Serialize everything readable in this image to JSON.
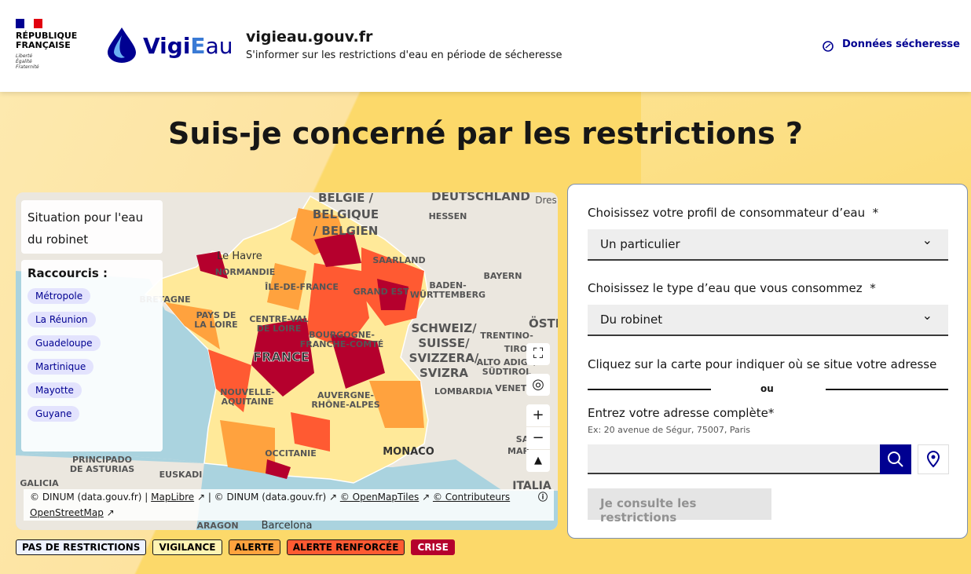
{
  "header": {
    "republic": [
      "RÉPUBLIQUE",
      "FRANÇAISE"
    ],
    "motto": [
      "Liberté",
      "Égalité",
      "Fraternité"
    ],
    "brand": [
      "Vigi",
      "E",
      "au"
    ],
    "site_title": "vigieau.gouv.fr",
    "tagline": "S'informer sur les restrictions d'eau en période de sécheresse",
    "nav_link": "Données sécheresse"
  },
  "hero": {
    "title": "Suis-je concerné par les restrictions ?"
  },
  "map": {
    "panel_title": "Situation pour l'eau du robinet",
    "shortcuts_title": "Raccourcis :",
    "shortcuts": [
      "Métropole",
      "La Réunion",
      "Guadeloupe",
      "Martinique",
      "Mayotte",
      "Guyane"
    ],
    "labels": [
      "BELGIË /",
      "BELGIQUE",
      "/ BELGIEN",
      "DEUTSCHLAND",
      "Dres",
      "HESSEN",
      "Le Havre",
      "NORMANDIE",
      "SAARLAND",
      "BADEN-",
      "WÜRTTEMBERG",
      "BAYERN",
      "ÎLE-DE-FRANCE",
      "GRAND EST",
      "BRETAGNE",
      "PAYS DE",
      "LA LOIRE",
      "CENTRE-VAL",
      "DE LOIRE",
      "BOURGOGNE-",
      "FRANCHE-COMTÉ",
      "SCHWEIZ/",
      "SUISSE/",
      "SVIZZERA/",
      "SVIZRA",
      "ÖSTE",
      "TRENTINO-",
      "ALTO ADIGE/",
      "SÜDTIROL",
      "TIROL",
      "VENETO",
      "LOMBARDIA",
      "FRANCE",
      "NOUVELLE-",
      "AQUITAINE",
      "AUVERGNE-",
      "RHÔNE-ALPES",
      "MONACO",
      "OCCITANIE",
      "PRINCIPADO",
      "DE ASTURIAS",
      "EUSKADI",
      "GALICIA",
      "ARAGON",
      "Barcelona",
      "ITALIA",
      "SA",
      "MAR"
    ],
    "attribution": [
      "© DINUM (data.gouv.fr) |",
      "MapLibre",
      "| © DINUM (data.gouv.fr)",
      "© OpenMapTiles",
      "© Contributeurs",
      "OpenStreetMap"
    ],
    "legend": [
      "PAS DE RESTRICTIONS",
      "VIGILANCE",
      "ALERTE",
      "ALERTE RENFORCÉE",
      "CRISE"
    ]
  },
  "form": {
    "profile_label": "Choisissez votre profil de consommateur d’eau",
    "profile_value": "Un particulier",
    "water_label": "Choisissez le type d’eau que vous consommez",
    "water_value": "Du robinet",
    "required": "*",
    "click_instruction": "Cliquez sur la carte pour indiquer où se situe votre adresse",
    "separator": "ou",
    "address_label": "Entrez votre adresse complète",
    "address_hint": "Ex: 20 avenue de Ségur, 75007, Paris",
    "submit": "Je consulte les restrictions"
  }
}
